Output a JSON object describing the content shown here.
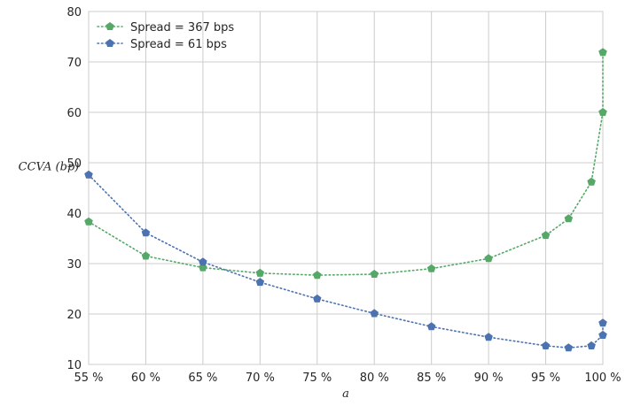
{
  "chart_data": {
    "type": "line",
    "xlabel": "a",
    "ylabel": "CCVA (bp)",
    "xlim": [
      55,
      100
    ],
    "ylim": [
      10,
      80
    ],
    "x_ticks": [
      55,
      60,
      65,
      70,
      75,
      80,
      85,
      90,
      95,
      100
    ],
    "x_tick_labels": [
      "55 %",
      "60 %",
      "65 %",
      "70 %",
      "75 %",
      "80 %",
      "85 %",
      "90 %",
      "95 %",
      "100 %"
    ],
    "y_ticks": [
      10,
      20,
      30,
      40,
      50,
      60,
      70,
      80
    ],
    "y_tick_labels": [
      "10",
      "20",
      "30",
      "40",
      "50",
      "60",
      "70",
      "80"
    ],
    "grid": true,
    "legend_position": "top-left",
    "series": [
      {
        "name": "Spread = 367 bps",
        "color": "#55a868",
        "marker": "pentagon",
        "linestyle": "dotted",
        "x": [
          55,
          60,
          65,
          70,
          75,
          80,
          85,
          90,
          95,
          97,
          99,
          100,
          100
        ],
        "y": [
          38.3,
          31.5,
          29.2,
          28.1,
          27.7,
          27.9,
          29.0,
          31.0,
          35.6,
          38.9,
          46.2,
          60.0,
          71.9
        ]
      },
      {
        "name": "Spread = 61 bps",
        "color": "#4c72b0",
        "marker": "pentagon",
        "linestyle": "dotted",
        "x": [
          55,
          60,
          65,
          70,
          75,
          80,
          85,
          90,
          95,
          97,
          99,
          100,
          100
        ],
        "y": [
          47.6,
          36.1,
          30.3,
          26.3,
          23.0,
          20.1,
          17.5,
          15.4,
          13.7,
          13.3,
          13.7,
          15.8,
          18.2
        ]
      }
    ]
  }
}
